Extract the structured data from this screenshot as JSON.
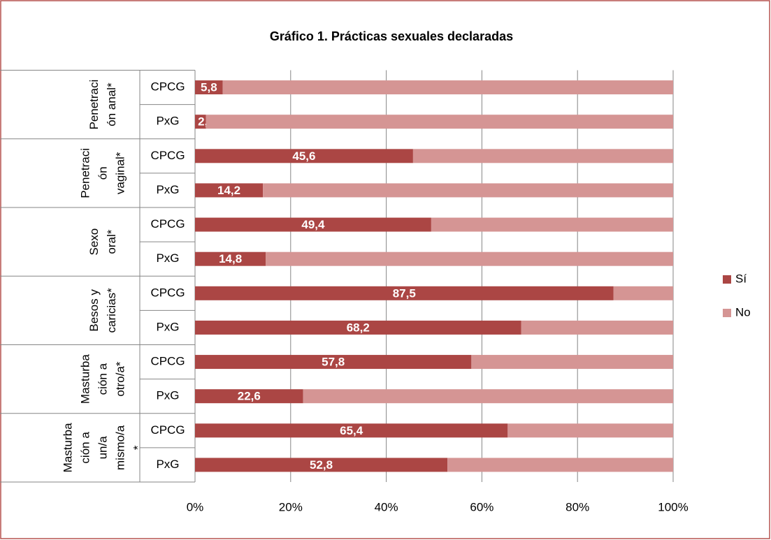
{
  "chart_data": {
    "type": "stacked_bar_horizontal_percent",
    "title": "Gráfico 1. Prácticas sexuales declaradas",
    "groups": [
      {
        "label": [
          "Penetraci",
          "ón anal*"
        ],
        "categories": [
          "CPCG",
          "PxG"
        ]
      },
      {
        "label": [
          "Penetraci",
          "ón",
          "vaginal*"
        ],
        "categories": [
          "CPCG",
          "PxG"
        ]
      },
      {
        "label": [
          "Sexo",
          "oral*"
        ],
        "categories": [
          "CPCG",
          "PxG"
        ]
      },
      {
        "label": [
          "Besos y",
          "caricias*"
        ],
        "categories": [
          "CPCG",
          "PxG"
        ]
      },
      {
        "label": [
          "Masturba",
          "ción a",
          "otro/a*"
        ],
        "categories": [
          "CPCG",
          "PxG"
        ]
      },
      {
        "label": [
          "Masturba",
          "ción a",
          "un/a",
          "mismo/a",
          "*"
        ],
        "categories": [
          "CPCG",
          "PxG"
        ]
      }
    ],
    "series": [
      {
        "name": "Sí",
        "color": "#ab4644",
        "values": [
          5.8,
          2.3,
          45.6,
          14.2,
          49.4,
          14.8,
          87.5,
          68.2,
          57.8,
          22.6,
          65.4,
          52.8
        ],
        "value_labels": [
          "5,8",
          "2,3",
          "45,6",
          "14,2",
          "49,4",
          "14,8",
          "87,5",
          "68,2",
          "57,8",
          "22,6",
          "65,4",
          "52,8"
        ]
      },
      {
        "name": "No",
        "color": "#d59594",
        "values": [
          94.2,
          97.7,
          54.4,
          85.8,
          50.6,
          85.2,
          12.5,
          31.8,
          42.2,
          77.4,
          34.6,
          47.2
        ]
      }
    ],
    "xlim": [
      0,
      100
    ],
    "xticks": [
      {
        "value": 0,
        "label": "0%"
      },
      {
        "value": 20,
        "label": "20%"
      },
      {
        "value": 40,
        "label": "40%"
      },
      {
        "value": 60,
        "label": "60%"
      },
      {
        "value": 80,
        "label": "80%"
      },
      {
        "value": 100,
        "label": "100%"
      }
    ],
    "grid": true,
    "legend": "right"
  }
}
